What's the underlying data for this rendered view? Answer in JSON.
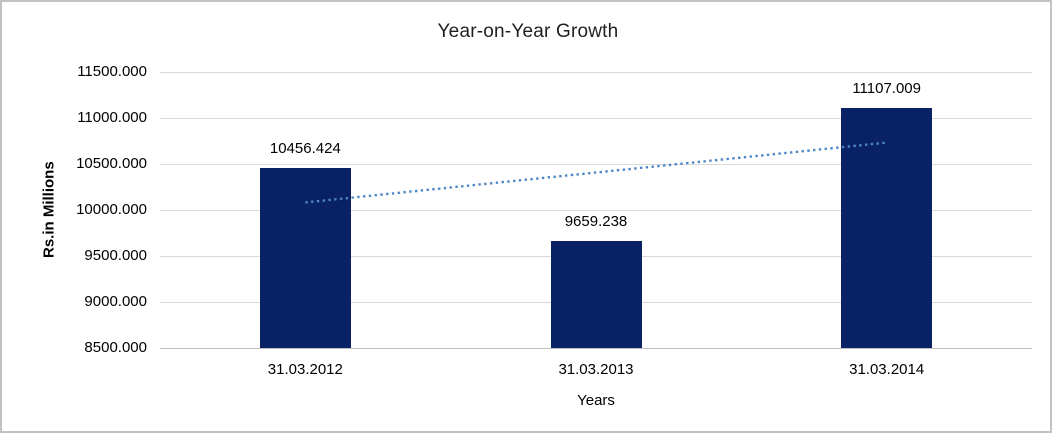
{
  "chart_data": {
    "type": "bar",
    "title": "Year-on-Year Growth",
    "xlabel": "Years",
    "ylabel": "Rs.in Millions",
    "categories": [
      "31.03.2012",
      "31.03.2013",
      "31.03.2014"
    ],
    "series": [
      {
        "name": "Year-on-Year Growth",
        "values": [
          10456.424,
          9659.238,
          11107.009
        ]
      }
    ],
    "data_labels": [
      "10456.424",
      "9659.238",
      "11107.009"
    ],
    "ylim": [
      8500,
      11500
    ],
    "ytick_step": 500,
    "ytick_labels": [
      "8500.000",
      "9000.000",
      "9500.000",
      "10000.000",
      "10500.000",
      "11000.000",
      "11500.000"
    ],
    "grid": true,
    "legend": false,
    "trendline": {
      "type": "linear",
      "style": "dotted"
    }
  },
  "colors": {
    "bar": "#082265",
    "trendline": "#4e86c5",
    "gridline": "#d9d9d9",
    "axis_line": "#bfbfbf",
    "text": "#000000",
    "title_text": "#1f1f1f",
    "border": "#c2c2c2",
    "background": "#ffffff"
  }
}
